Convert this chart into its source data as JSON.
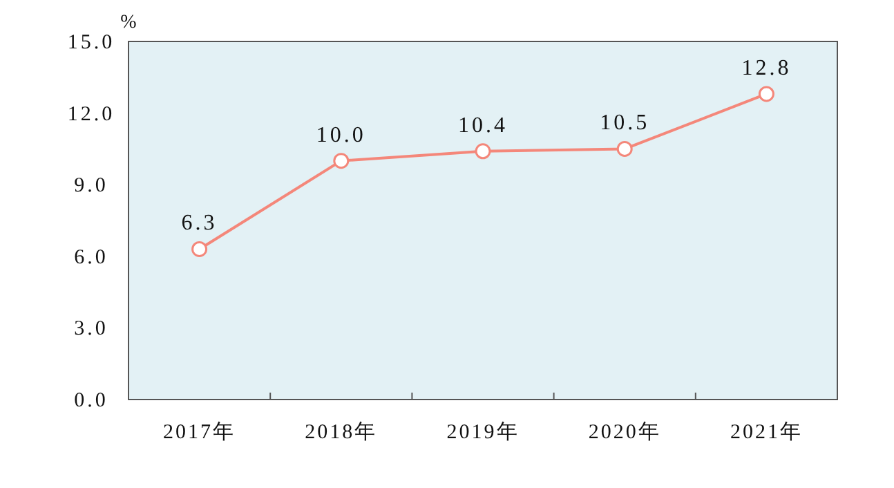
{
  "chart_data": {
    "type": "line",
    "ylabel": "%",
    "categories": [
      "2017年",
      "2018年",
      "2019年",
      "2020年",
      "2021年"
    ],
    "series": [
      {
        "color": "#f4877a",
        "values": [
          6.3,
          10.0,
          10.4,
          10.5,
          12.8
        ]
      }
    ],
    "value_labels": [
      "6.3",
      "10.0",
      "10.4",
      "10.5",
      "12.8"
    ],
    "ylim": [
      0,
      15
    ],
    "yticks": [
      {
        "value": 0,
        "label": "0.0"
      },
      {
        "value": 3,
        "label": "3.0"
      },
      {
        "value": 6,
        "label": "6.0"
      },
      {
        "value": 9,
        "label": "9.0"
      },
      {
        "value": 12,
        "label": "12.0"
      },
      {
        "value": 15,
        "label": "15.0"
      }
    ],
    "grid": false,
    "marker": "circle",
    "line_style": "solid"
  }
}
